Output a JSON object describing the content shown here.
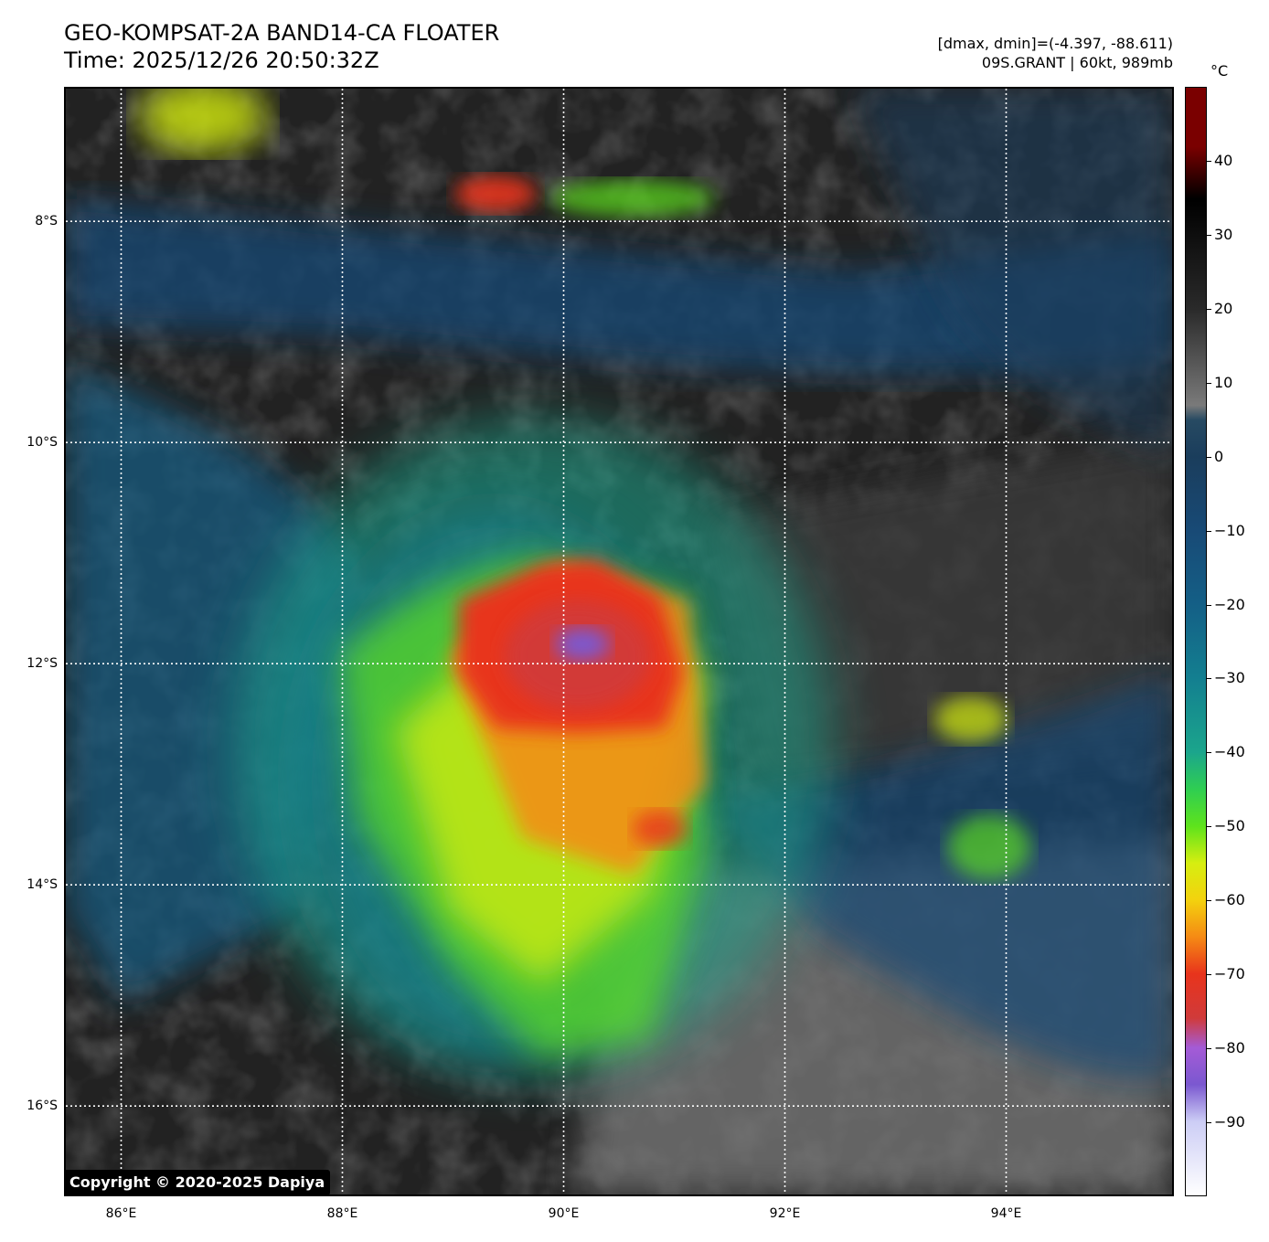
{
  "header": {
    "title_line1": "GEO-KOMPSAT-2A BAND14-CA FLOATER",
    "title_line2": "Time: 2025/12/26 20:50:32Z",
    "info_line1": "[dmax, dmin]=(-4.397, -88.611)",
    "info_line2": "09S.GRANT | 60kt, 989mb"
  },
  "map": {
    "lat_labels": [
      "8°S",
      "10°S",
      "12°S",
      "14°S",
      "16°S"
    ],
    "lon_labels": [
      "86°E",
      "88°E",
      "90°E",
      "92°E",
      "94°E"
    ],
    "lat_values": [
      -8,
      -10,
      -12,
      -14,
      -16
    ],
    "lon_values": [
      86,
      88,
      90,
      92,
      94
    ],
    "extent": {
      "lon_min": 85.5,
      "lon_max": 95.5,
      "lat_max": -6.8,
      "lat_min": -16.8
    },
    "copyright": "Copyright © 2020-2025 Dapiya"
  },
  "colorbar": {
    "unit": "°C",
    "range": [
      -100,
      50
    ],
    "tick_values": [
      40,
      30,
      20,
      10,
      0,
      -10,
      -20,
      -30,
      -40,
      -50,
      -60,
      -70,
      -80,
      -90
    ],
    "tick_labels": [
      "40",
      "30",
      "20",
      "10",
      "0",
      "−10",
      "−20",
      "−30",
      "−40",
      "−50",
      "−60",
      "−70",
      "−80",
      "−90"
    ],
    "stops": [
      {
        "t": -100,
        "color": "#ffffff"
      },
      {
        "t": -90,
        "color": "#cccdf5"
      },
      {
        "t": -85,
        "color": "#7b58d0"
      },
      {
        "t": -80,
        "color": "#a45bd6"
      },
      {
        "t": -76,
        "color": "#d03a3a"
      },
      {
        "t": -70,
        "color": "#e8341c"
      },
      {
        "t": -65,
        "color": "#f58a14"
      },
      {
        "t": -60,
        "color": "#f3d20e"
      },
      {
        "t": -55,
        "color": "#d6ee10"
      },
      {
        "t": -50,
        "color": "#5ee31c"
      },
      {
        "t": -45,
        "color": "#2fce52"
      },
      {
        "t": -40,
        "color": "#1ba58c"
      },
      {
        "t": -30,
        "color": "#137f90"
      },
      {
        "t": -20,
        "color": "#145f86"
      },
      {
        "t": -10,
        "color": "#184a76"
      },
      {
        "t": 0,
        "color": "#1a3d5c"
      },
      {
        "t": 5,
        "color": "#274a62"
      },
      {
        "t": 7,
        "color": "#7a7a7a"
      },
      {
        "t": 20,
        "color": "#2a2a2a"
      },
      {
        "t": 35,
        "color": "#000000"
      },
      {
        "t": 42,
        "color": "#7a0000"
      },
      {
        "t": 50,
        "color": "#7a0000"
      }
    ]
  }
}
